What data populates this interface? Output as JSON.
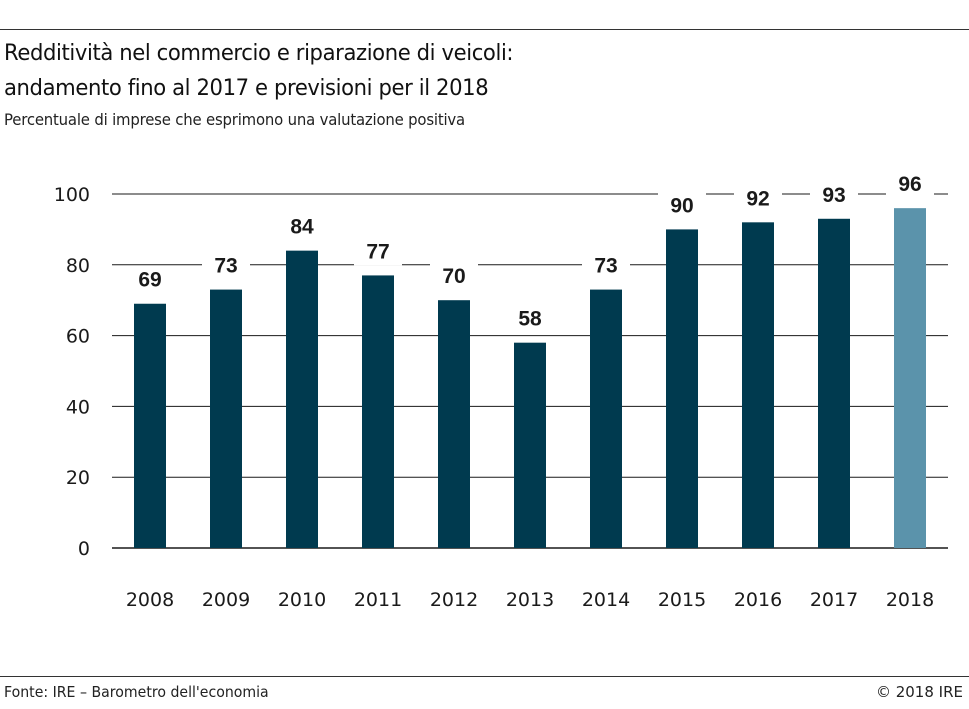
{
  "header": {
    "title_line1": "Redditività nel commercio e riparazione di veicoli:",
    "title_line2": "andamento fino al 2017 e previsioni per il 2018",
    "subtitle": "Percentuale di imprese che esprimono una valutazione positiva"
  },
  "footer": {
    "source": "Fonte: IRE – Barometro dell'economia",
    "copyright": "© 2018 IRE"
  },
  "colors": {
    "actual_bar": "#003a4f",
    "forecast_bar": "#5b93ab",
    "gridline": "#1a1a1a",
    "text": "#1a1a1a"
  },
  "chart_data": {
    "type": "bar",
    "title": "Redditività nel commercio e riparazione di veicoli: andamento fino al 2017 e previsioni per il 2018",
    "subtitle": "Percentuale di imprese che esprimono una valutazione positiva",
    "xlabel": "",
    "ylabel": "",
    "categories": [
      "2008",
      "2009",
      "2010",
      "2011",
      "2012",
      "2013",
      "2014",
      "2015",
      "2016",
      "2017",
      "2018"
    ],
    "values": [
      69,
      73,
      84,
      77,
      70,
      58,
      73,
      90,
      92,
      93,
      96
    ],
    "forecast": [
      false,
      false,
      false,
      false,
      false,
      false,
      false,
      false,
      false,
      false,
      true
    ],
    "ylim": [
      0,
      100
    ],
    "yticks": [
      0,
      20,
      40,
      60,
      80,
      100
    ],
    "grid": true,
    "legend": "none",
    "data_labels": true
  }
}
